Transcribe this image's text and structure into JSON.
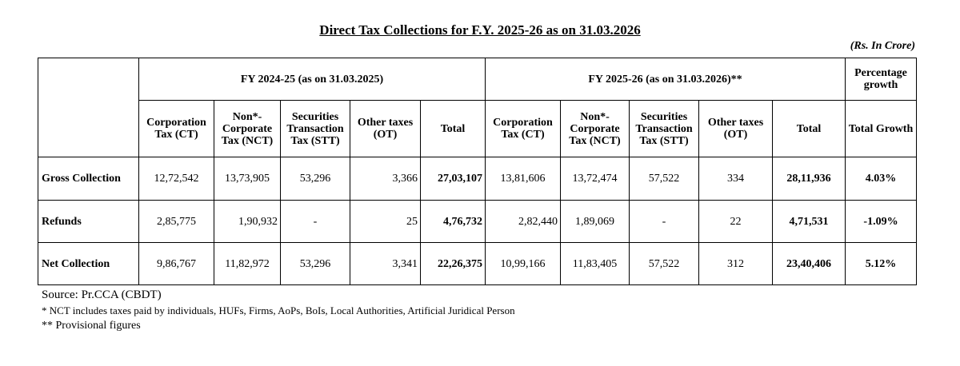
{
  "title": "Direct Tax Collections for F.Y. 2025-26 as on 31.03.2026",
  "units": "(Rs. In Crore)",
  "groups": {
    "prev": "FY 2024-25 (as on 31.03.2025)",
    "curr": "FY 2025-26 (as on 31.03.2026)**",
    "growth": "Percentage growth"
  },
  "columns": {
    "prev": [
      "Corporation Tax (CT)",
      "Non*-Corporate Tax (NCT)",
      "Securities Transaction Tax (STT)",
      "Other taxes (OT)",
      "Total"
    ],
    "curr": [
      "Corporation Tax (CT)",
      "Non*-Corporate Tax (NCT)",
      "Securities Transaction Tax (STT)",
      "Other taxes (OT)",
      "Total"
    ],
    "growth": "Total Growth"
  },
  "rows": [
    {
      "label": "Gross Collection",
      "prev": [
        "12,72,542",
        "13,73,905",
        "53,296",
        "3,366",
        "27,03,107"
      ],
      "curr": [
        "13,81,606",
        "13,72,474",
        "57,522",
        "334",
        "28,11,936"
      ],
      "growth": "4.03%"
    },
    {
      "label": "Refunds",
      "prev": [
        "2,85,775",
        "1,90,932",
        "-",
        "25",
        "4,76,732"
      ],
      "curr": [
        "2,82,440",
        "1,89,069",
        "-",
        "22",
        "4,71,531"
      ],
      "growth": "-1.09%"
    },
    {
      "label": "Net Collection",
      "prev": [
        "9,86,767",
        "11,82,972",
        "53,296",
        "3,341",
        "22,26,375"
      ],
      "curr": [
        "10,99,166",
        "11,83,405",
        "57,522",
        "312",
        "23,40,406"
      ],
      "growth": "5.12%"
    }
  ],
  "footer": {
    "source": "Source: Pr.CCA (CBDT)",
    "note1": "* NCT includes taxes paid by individuals, HUFs, Firms, AoPs, BoIs, Local Authorities, Artificial Juridical Person",
    "note2": "** Provisional figures"
  }
}
